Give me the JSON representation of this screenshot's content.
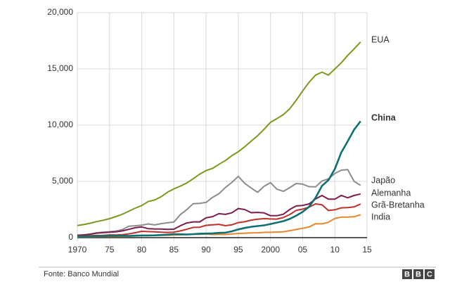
{
  "chart_data": {
    "type": "line",
    "x": [
      1970,
      1971,
      1972,
      1973,
      1974,
      1975,
      1976,
      1977,
      1978,
      1979,
      1980,
      1981,
      1982,
      1983,
      1984,
      1985,
      1986,
      1987,
      1988,
      1989,
      1990,
      1991,
      1992,
      1993,
      1994,
      1995,
      1996,
      1997,
      1998,
      1999,
      2000,
      2001,
      2002,
      2003,
      2004,
      2005,
      2006,
      2007,
      2008,
      2009,
      2010,
      2011,
      2012,
      2013,
      2014
    ],
    "series": [
      {
        "name": "EUA",
        "color": "#7a9a1c",
        "values": [
          1073,
          1165,
          1280,
          1425,
          1545,
          1685,
          1873,
          2082,
          2352,
          2627,
          2857,
          3207,
          3343,
          3634,
          4037,
          4339,
          4580,
          4855,
          5236,
          5642,
          5963,
          6158,
          6520,
          6859,
          7287,
          7640,
          8073,
          8578,
          9063,
          9631,
          10252,
          10582,
          10936,
          11458,
          12214,
          13037,
          13815,
          14452,
          14713,
          14449,
          14992,
          15543,
          16197,
          16785,
          17393
        ]
      },
      {
        "name": "China",
        "color": "#0e7070",
        "values": [
          92,
          100,
          114,
          139,
          144,
          163,
          154,
          175,
          150,
          178,
          191,
          196,
          205,
          231,
          260,
          309,
          301,
          273,
          312,
          348,
          361,
          383,
          427,
          445,
          564,
          734,
          864,
          962,
          1029,
          1094,
          1211,
          1339,
          1471,
          1660,
          1955,
          2286,
          2752,
          3552,
          4598,
          5110,
          6101,
          7573,
          8561,
          9607,
          10350
        ]
      },
      {
        "name": "Japão",
        "color": "#8c8c8c",
        "values": [
          213,
          240,
          318,
          432,
          479,
          522,
          586,
          721,
          1013,
          1055,
          1105,
          1218,
          1134,
          1243,
          1318,
          1385,
          2051,
          2485,
          3016,
          3049,
          3133,
          3584,
          3909,
          4454,
          4907,
          5449,
          4833,
          4415,
          4033,
          4563,
          4888,
          4304,
          4116,
          4445,
          4815,
          4755,
          4530,
          4515,
          5038,
          5231,
          5700,
          6000,
          6050,
          5000,
          4650
        ]
      },
      {
        "name": "Alemanha",
        "color": "#7b1d4b",
        "values": [
          215,
          249,
          300,
          398,
          445,
          490,
          519,
          600,
          740,
          881,
          950,
          801,
          777,
          770,
          732,
          747,
          1057,
          1306,
          1403,
          1398,
          1765,
          1868,
          2131,
          2071,
          2205,
          2586,
          2503,
          2217,
          2241,
          2200,
          1950,
          1951,
          2079,
          2505,
          2820,
          2861,
          3002,
          3440,
          3752,
          3418,
          3417,
          3758,
          3544,
          3753,
          3880
        ]
      },
      {
        "name": "Grã-Bretanha",
        "color": "#c0302b",
        "values": [
          130,
          148,
          170,
          193,
          206,
          241,
          232,
          263,
          335,
          438,
          565,
          540,
          515,
          489,
          461,
          489,
          601,
          745,
          910,
          926,
          1093,
          1142,
          1179,
          1061,
          1140,
          1336,
          1410,
          1554,
          1643,
          1687,
          1665,
          1649,
          1785,
          2054,
          2422,
          2539,
          2713,
          3000,
          2923,
          2410,
          2475,
          2649,
          2677,
          2740,
          2990
        ]
      },
      {
        "name": "India",
        "color": "#e8862d",
        "values": [
          62,
          67,
          71,
          85,
          99,
          98,
          102,
          121,
          137,
          153,
          186,
          193,
          200,
          218,
          212,
          232,
          248,
          279,
          296,
          296,
          327,
          275,
          293,
          284,
          333,
          367,
          400,
          423,
          429,
          467,
          477,
          494,
          524,
          618,
          722,
          834,
          949,
          1239,
          1224,
          1365,
          1708,
          1823,
          1828,
          1857,
          2039
        ]
      }
    ],
    "xlim": [
      1970,
      2015
    ],
    "xticks": [
      1970,
      {
        "value": 1975,
        "label": "75"
      },
      {
        "value": 1980,
        "label": "80"
      },
      {
        "value": 1985,
        "label": "85"
      },
      {
        "value": 1990,
        "label": "90"
      },
      {
        "value": 1995,
        "label": "95"
      },
      2000,
      {
        "value": 2005,
        "label": "05"
      },
      {
        "value": 2010,
        "label": "10"
      },
      {
        "value": 2015,
        "label": "15"
      }
    ],
    "ylim": [
      0,
      20000
    ],
    "yticks": [
      0,
      {
        "value": 5000,
        "label": "5,000"
      },
      {
        "value": 10000,
        "label": "10,000"
      },
      {
        "value": 15000,
        "label": "15,000"
      },
      {
        "value": 20000,
        "label": "20,000"
      }
    ],
    "grid": true,
    "source": "Fonte: Banco Mundial",
    "logo": [
      "B",
      "B",
      "C"
    ]
  }
}
